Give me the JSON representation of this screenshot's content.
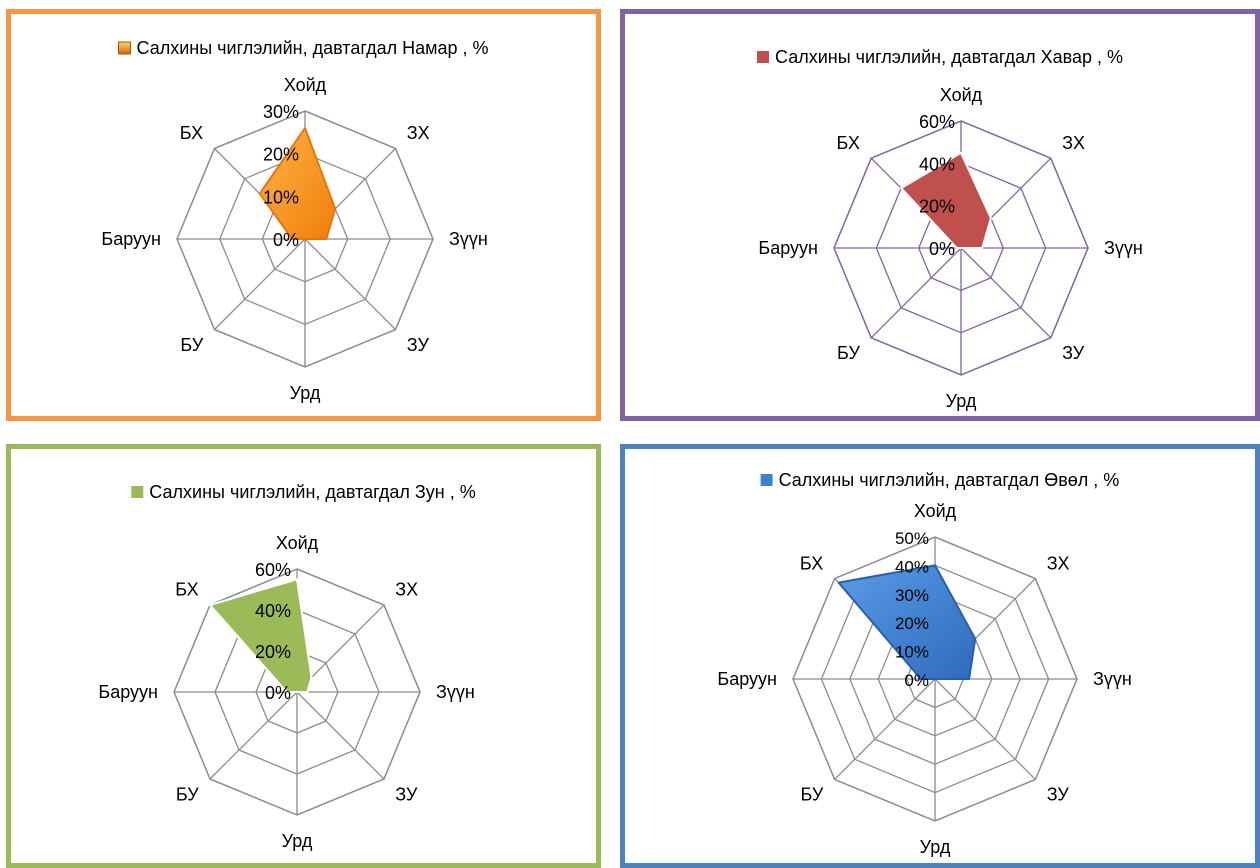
{
  "chart_data": [
    {
      "type": "radar",
      "series": [
        {
          "name": "Салхины чиглэлийн, давтагдал Намар , %",
          "values": [
            26,
            10,
            5,
            0,
            0,
            0,
            3,
            15
          ]
        }
      ],
      "categories": [
        "Хойд",
        "ЗХ",
        "Зүүн",
        "ЗУ",
        "Урд",
        "БУ",
        "Баруун",
        "БХ"
      ],
      "tick_labels": [
        "0%",
        "10%",
        "20%",
        "30%"
      ],
      "rlim": [
        0,
        30
      ],
      "legend": "top",
      "colors": {
        "fill": "#f7941d",
        "stroke": "#e07a10",
        "frame": "#f79646",
        "grid": "#8c8c8c"
      }
    },
    {
      "type": "radar",
      "series": [
        {
          "name": "Салхины чиглэлийн, давтагдал Хавар , %",
          "values": [
            45,
            20,
            10,
            0,
            0,
            0,
            2,
            40
          ]
        }
      ],
      "categories": [
        "Хойд",
        "ЗХ",
        "Зүүн",
        "ЗУ",
        "Урд",
        "БУ",
        "Баруун",
        "БХ"
      ],
      "tick_labels": [
        "0%",
        "20%",
        "40%",
        "60%"
      ],
      "rlim": [
        0,
        60
      ],
      "legend": "top",
      "colors": {
        "fill": "#c0504d",
        "stroke": "#ffffff",
        "frame": "#8064a2",
        "grid": "#8064a2"
      }
    },
    {
      "type": "radar",
      "series": [
        {
          "name": "Салхины чиглэлийн, давтагдал Зун , %",
          "values": [
            55,
            10,
            5,
            0,
            0,
            0,
            5,
            60
          ]
        }
      ],
      "categories": [
        "Хойд",
        "ЗХ",
        "Зүүн",
        "ЗУ",
        "Урд",
        "БУ",
        "Баруун",
        "БХ"
      ],
      "tick_labels": [
        "0%",
        "20%",
        "40%",
        "60%"
      ],
      "rlim": [
        0,
        60
      ],
      "legend": "top",
      "colors": {
        "fill": "#9bbb59",
        "stroke": "#ffffff",
        "frame": "#9bbb59",
        "grid": "#8c8c8c"
      }
    },
    {
      "type": "radar",
      "series": [
        {
          "name": "Салхины чиглэлийн, давтагдал Өвөл , %",
          "values": [
            40,
            20,
            12,
            0,
            0,
            0,
            5,
            48
          ]
        }
      ],
      "categories": [
        "Хойд",
        "ЗХ",
        "Зүүн",
        "ЗУ",
        "Урд",
        "БУ",
        "Баруун",
        "БХ"
      ],
      "tick_labels": [
        "0%",
        "10%",
        "20%",
        "30%",
        "40%",
        "50%"
      ],
      "rlim": [
        0,
        50
      ],
      "legend": "top",
      "colors": {
        "fill": "#3f7fd0",
        "stroke": "#2a5fa8",
        "frame": "#4f81bd",
        "grid": "#8c8c8c"
      }
    }
  ]
}
